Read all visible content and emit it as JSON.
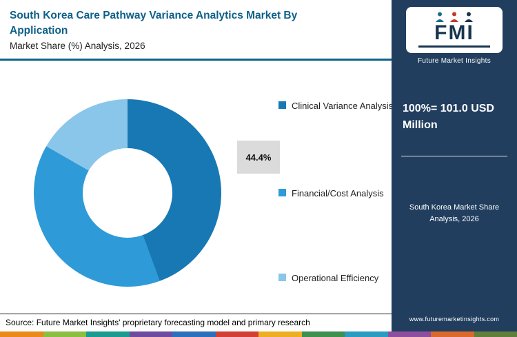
{
  "header": {
    "title": "South Korea Care Pathway Variance Analytics Market By Application",
    "subtitle": "Market Share (%) Analysis, 2026"
  },
  "chart_data": {
    "type": "pie",
    "donut": true,
    "title": "South Korea Care Pathway Variance Analytics Market By Application — Market Share (%) Analysis, 2026",
    "categories": [
      "Clinical Variance Analysis",
      "Financial/Cost Analysis",
      "Operational Efficiency"
    ],
    "values": [
      44.4,
      38.9,
      16.7
    ],
    "labeled_segment": "Clinical Variance Analysis",
    "labeled_value": "44.4%",
    "colors": [
      "#1878B4",
      "#2E9BD8",
      "#8AC6EA"
    ],
    "total_note": "100%= 101.0 USD Million",
    "legend_position": "right",
    "start_angle_deg": 0,
    "direction": "clockwise"
  },
  "sidebar": {
    "logo": {
      "abbr": "FMI",
      "name": "Future Market Insights"
    },
    "total_label": "100%= 101.0 USD Million",
    "note": "South Korea Market Share Analysis, 2026",
    "website": "www.futuremarketinsights.com"
  },
  "footer": {
    "source": "Source: Future Market Insights' proprietary forecasting model and primary research"
  },
  "colors": {
    "accent": "#0D6089",
    "sidebar_bg": "#213E5F",
    "callout_bg": "#DBDBDB",
    "strip": [
      "#E98A1B",
      "#8CBF3F",
      "#1A9B8F",
      "#6E4B9E",
      "#2C6FBA",
      "#D23F34",
      "#EDAE24",
      "#3F8F4F",
      "#2A9BC1",
      "#8E4E9E",
      "#D96A2B",
      "#5F7F3B"
    ]
  }
}
